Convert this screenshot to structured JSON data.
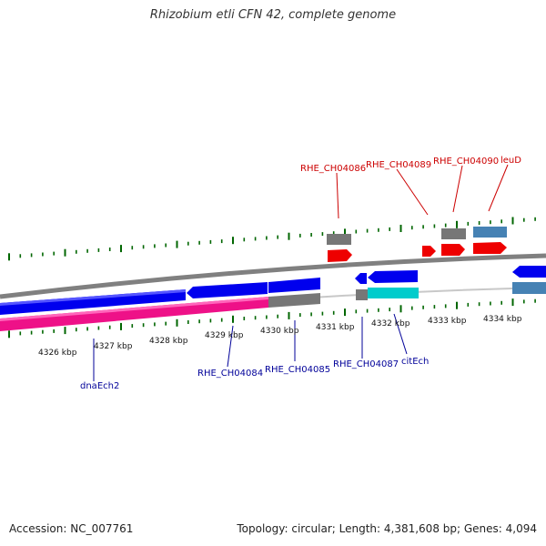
{
  "title": "Rhizobium etli CFN 42, complete genome",
  "footer": {
    "accession": "Accession: NC_007761",
    "summary": "Topology: circular; Length: 4,381,608 bp; Genes: 4,094"
  },
  "colors": {
    "forward_genes": "#0000ee",
    "reverse_genes": "#ee0088",
    "backbone": "#808080",
    "rna": "#ee0000",
    "misc": "#4682b4",
    "other": "#00cccc",
    "ticks": "#006600",
    "label_top": "#cc0000",
    "label_bottom": "#000099"
  },
  "scale": {
    "ticks": [
      {
        "label": "4326 kbp"
      },
      {
        "label": "4327 kbp"
      },
      {
        "label": "4328 kbp"
      },
      {
        "label": "4329 kbp"
      },
      {
        "label": "4330 kbp"
      },
      {
        "label": "4331 kbp"
      },
      {
        "label": "4332 kbp"
      },
      {
        "label": "4333 kbp"
      },
      {
        "label": "4334 kbp"
      }
    ]
  },
  "labels_top": [
    "RHE_CH04086",
    "RHE_CH04089",
    "RHE_CH04090",
    "leuD"
  ],
  "labels_bottom": [
    "dnaEch2",
    "RHE_CH04084",
    "RHE_CH04085",
    "RHE_CH04087",
    "citEch"
  ]
}
